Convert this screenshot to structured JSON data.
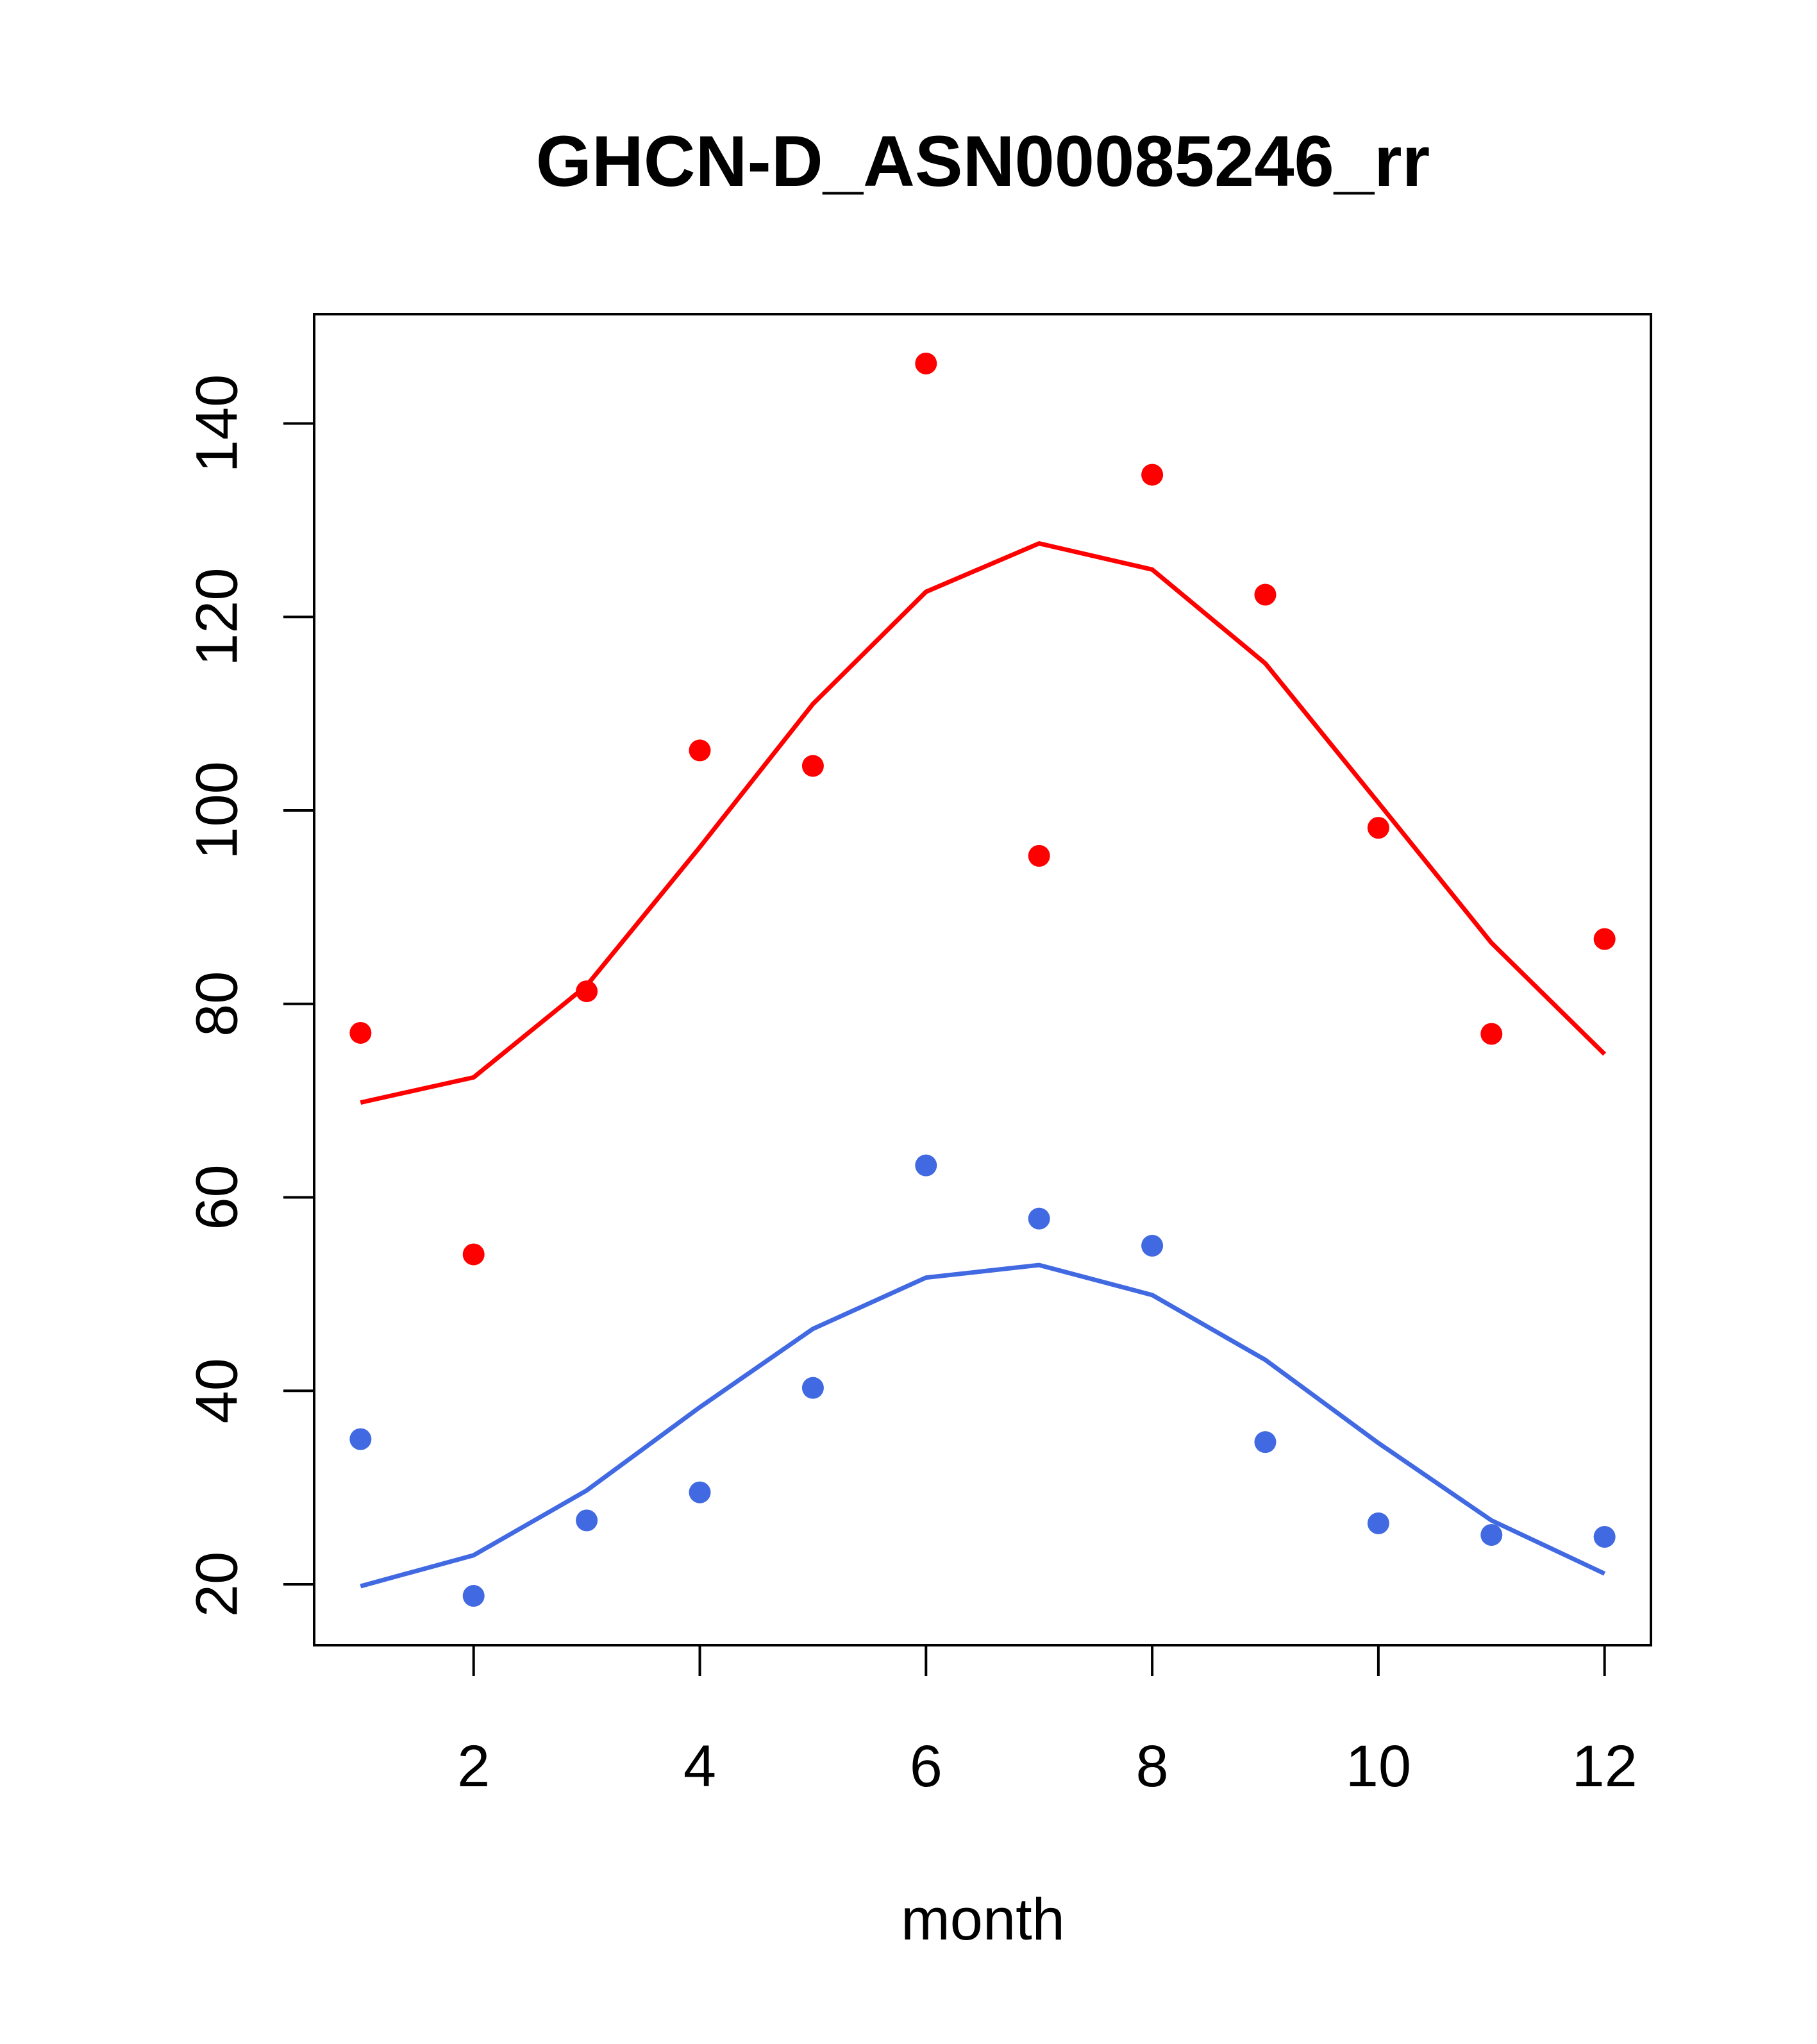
{
  "chart_data": {
    "type": "scatter",
    "title": "GHCN-D_ASN00085246_rr",
    "xlabel": "month",
    "ylabel": "",
    "xlim": [
      0.59,
      12.41
    ],
    "ylim": [
      13.7,
      151.3
    ],
    "xticks": [
      2,
      4,
      6,
      8,
      10,
      12
    ],
    "xtick_labels": [
      "2",
      "4",
      "6",
      "8",
      "10",
      "12"
    ],
    "yticks": [
      20,
      40,
      60,
      80,
      100,
      120,
      140
    ],
    "ytick_labels": [
      "20",
      "40",
      "60",
      "80",
      "100",
      "120",
      "140"
    ],
    "grid": false,
    "x": [
      1,
      2,
      3,
      4,
      5,
      6,
      7,
      8,
      9,
      10,
      11,
      12
    ],
    "series": [
      {
        "name": "red-points",
        "kind": "points",
        "color": "#ff0000",
        "values": [
          77.0,
          54.1,
          81.3,
          106.2,
          104.6,
          146.2,
          95.3,
          134.7,
          122.3,
          98.2,
          76.9,
          86.7
        ]
      },
      {
        "name": "red-fit",
        "kind": "line",
        "color": "#ff0000",
        "values": [
          69.8,
          72.4,
          81.9,
          96.2,
          111.0,
          122.6,
          127.6,
          124.9,
          115.2,
          100.8,
          86.3,
          74.8
        ]
      },
      {
        "name": "blue-points",
        "kind": "points",
        "color": "#4169e1",
        "values": [
          35.0,
          18.8,
          26.6,
          29.5,
          40.3,
          63.3,
          57.8,
          55.0,
          34.7,
          26.3,
          25.1,
          24.9
        ]
      },
      {
        "name": "blue-fit",
        "kind": "line",
        "color": "#4169e1",
        "values": [
          19.8,
          23.0,
          29.7,
          38.3,
          46.4,
          51.7,
          53.0,
          49.9,
          43.2,
          34.6,
          26.6,
          21.1
        ]
      }
    ]
  }
}
